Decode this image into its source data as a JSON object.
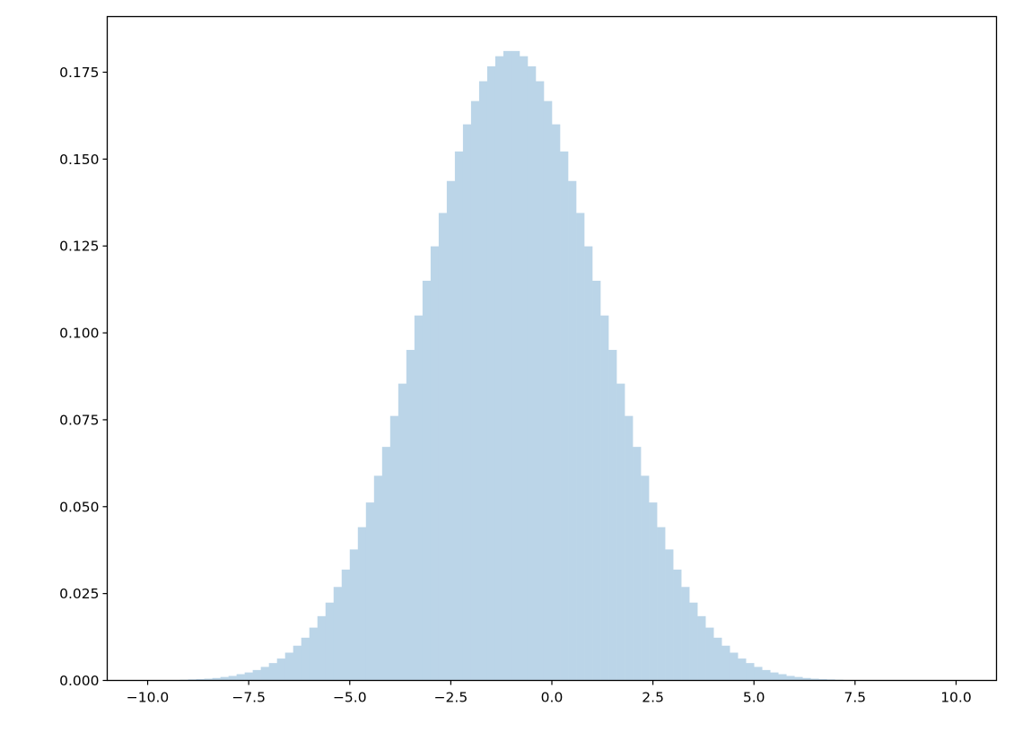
{
  "chart_data": {
    "type": "bar",
    "title": "",
    "xlabel": "",
    "ylabel": "",
    "bar_color": "#bbd5e8",
    "bin_start": -10.0,
    "bin_width": 0.2,
    "values": [
      0.0001,
      0.0001,
      0.0001,
      0.0001,
      0.0002,
      0.0003,
      0.0004,
      0.0005,
      0.0007,
      0.001,
      0.0013,
      0.0018,
      0.0023,
      0.003,
      0.0039,
      0.005,
      0.0063,
      0.008,
      0.01,
      0.0123,
      0.0152,
      0.0185,
      0.0224,
      0.0269,
      0.0319,
      0.0377,
      0.0441,
      0.0512,
      0.0589,
      0.0672,
      0.0761,
      0.0854,
      0.0951,
      0.105,
      0.115,
      0.1249,
      0.1345,
      0.1437,
      0.1522,
      0.16,
      0.1667,
      0.1724,
      0.1767,
      0.1796,
      0.1811,
      0.1811,
      0.1796,
      0.1767,
      0.1724,
      0.1667,
      0.16,
      0.1522,
      0.1437,
      0.1345,
      0.1249,
      0.115,
      0.105,
      0.0951,
      0.0854,
      0.0761,
      0.0672,
      0.0589,
      0.0512,
      0.0441,
      0.0377,
      0.0319,
      0.0269,
      0.0224,
      0.0185,
      0.0152,
      0.0123,
      0.01,
      0.008,
      0.0063,
      0.005,
      0.0039,
      0.003,
      0.0023,
      0.0018,
      0.0013,
      0.001,
      0.0007,
      0.0005,
      0.0004,
      0.0003,
      0.0002,
      0.0001,
      0.0001,
      0.0001,
      0.0001,
      0,
      0,
      0,
      0,
      0,
      0,
      0,
      0,
      0,
      0
    ],
    "xlim": [
      -11.0,
      11.0
    ],
    "ylim": [
      0,
      0.191
    ],
    "x_ticks": [
      -10.0,
      -7.5,
      -5.0,
      -2.5,
      0.0,
      2.5,
      5.0,
      7.5,
      10.0
    ],
    "x_tick_labels": [
      "−10.0",
      "−7.5",
      "−5.0",
      "−2.5",
      "0.0",
      "2.5",
      "5.0",
      "7.5",
      "10.0"
    ],
    "y_ticks": [
      0,
      0.025,
      0.05,
      0.075,
      0.1,
      0.125,
      0.15,
      0.175
    ],
    "y_tick_labels": [
      "0.000",
      "0.025",
      "0.050",
      "0.075",
      "0.100",
      "0.125",
      "0.150",
      "0.175"
    ],
    "grid": false,
    "legend": "none"
  }
}
